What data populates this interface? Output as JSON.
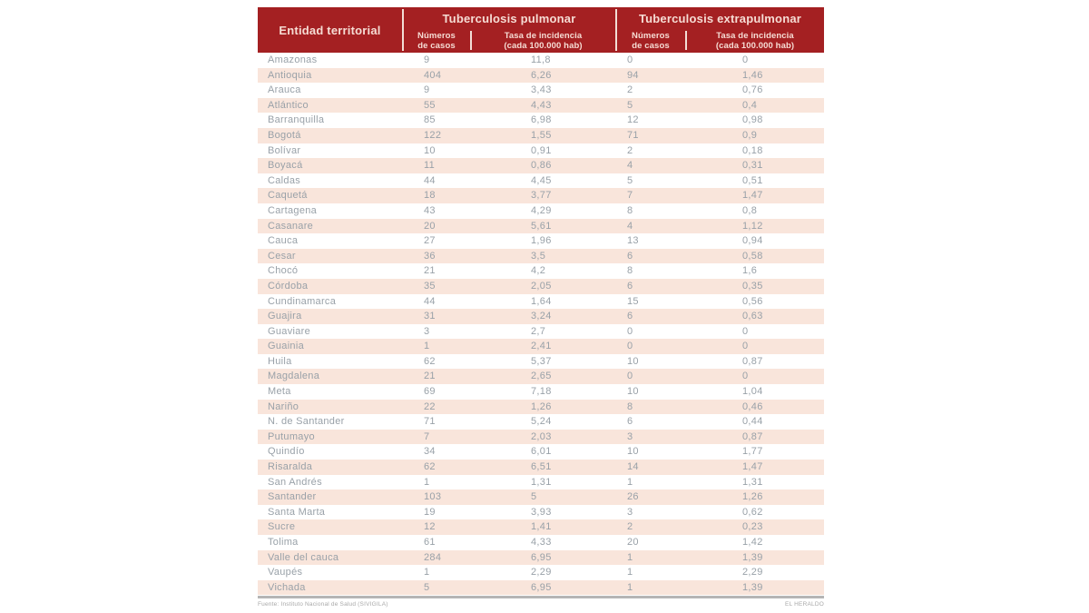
{
  "colors": {
    "header_bg": "#a42022",
    "header_text": "#f6dcd4",
    "row_bg": "#ffffff",
    "row_alt_bg": "#f9e5db",
    "data_text": "#99a1a8",
    "footer_bar": "#b5b5b5",
    "footer_text": "#a8a8a8"
  },
  "table": {
    "entity_header": "Entidad territorial",
    "sections": [
      {
        "title": "Tuberculosis pulmonar",
        "col_casos": {
          "line1": "Números",
          "line2": "de casos"
        },
        "col_tasa": {
          "line1": "Tasa de incidencia",
          "line2": "(cada 100.000 hab)"
        }
      },
      {
        "title": "Tuberculosis extrapulmonar",
        "col_casos": {
          "line1": "Números",
          "line2": "de casos"
        },
        "col_tasa": {
          "line1": "Tasa de incidencia",
          "line2": "(cada 100.000 hab)"
        }
      }
    ],
    "rows": [
      {
        "name": "Amazonas",
        "values": [
          "9",
          "11,8",
          "0",
          "0"
        ]
      },
      {
        "name": "Antioquia",
        "values": [
          "404",
          "6,26",
          "94",
          "1,46"
        ]
      },
      {
        "name": "Arauca",
        "values": [
          "9",
          "3,43",
          "2",
          "0,76"
        ]
      },
      {
        "name": "Atlántico",
        "values": [
          "55",
          "4,43",
          "5",
          "0,4"
        ]
      },
      {
        "name": "Barranquilla",
        "values": [
          "85",
          "6,98",
          "12",
          "0,98"
        ]
      },
      {
        "name": "Bogotá",
        "values": [
          "122",
          "1,55",
          "71",
          "0,9"
        ]
      },
      {
        "name": "Bolívar",
        "values": [
          "10",
          "0,91",
          "2",
          "0,18"
        ]
      },
      {
        "name": "Boyacá",
        "values": [
          "11",
          "0,86",
          "4",
          "0,31"
        ]
      },
      {
        "name": "Caldas",
        "values": [
          "44",
          "4,45",
          "5",
          "0,51"
        ]
      },
      {
        "name": "Caquetá",
        "values": [
          "18",
          "3,77",
          "7",
          "1,47"
        ]
      },
      {
        "name": "Cartagena",
        "values": [
          "43",
          "4,29",
          "8",
          "0,8"
        ]
      },
      {
        "name": "Casanare",
        "values": [
          "20",
          "5,61",
          "4",
          "1,12"
        ]
      },
      {
        "name": "Cauca",
        "values": [
          "27",
          "1,96",
          "13",
          "0,94"
        ]
      },
      {
        "name": "Cesar",
        "values": [
          "36",
          "3,5",
          "6",
          "0,58"
        ]
      },
      {
        "name": "Chocó",
        "values": [
          "21",
          "4,2",
          "8",
          "1,6"
        ]
      },
      {
        "name": "Córdoba",
        "values": [
          "35",
          "2,05",
          "6",
          "0,35"
        ]
      },
      {
        "name": "Cundinamarca",
        "values": [
          "44",
          "1,64",
          "15",
          "0,56"
        ]
      },
      {
        "name": "Guajira",
        "values": [
          "31",
          "3,24",
          "6",
          "0,63"
        ]
      },
      {
        "name": "Guaviare",
        "values": [
          "3",
          "2,7",
          "0",
          "0"
        ]
      },
      {
        "name": "Guainia",
        "values": [
          "1",
          "2,41",
          "0",
          "0"
        ]
      },
      {
        "name": "Huila",
        "values": [
          "62",
          "5,37",
          "10",
          "0,87"
        ]
      },
      {
        "name": "Magdalena",
        "values": [
          "21",
          "2,65",
          "0",
          "0"
        ]
      },
      {
        "name": "Meta",
        "values": [
          "69",
          "7,18",
          "10",
          "1,04"
        ]
      },
      {
        "name": "Nariño",
        "values": [
          "22",
          "1,26",
          "8",
          "0,46"
        ]
      },
      {
        "name": "N. de Santander",
        "values": [
          "71",
          "5,24",
          "6",
          "0,44"
        ]
      },
      {
        "name": "Putumayo",
        "values": [
          "7",
          "2,03",
          "3",
          "0,87"
        ]
      },
      {
        "name": "Quindío",
        "values": [
          "34",
          "6,01",
          "10",
          "1,77"
        ]
      },
      {
        "name": "Risaralda",
        "values": [
          "62",
          "6,51",
          "14",
          "1,47"
        ]
      },
      {
        "name": "San Andrés",
        "values": [
          "1",
          "1,31",
          "1",
          "1,31"
        ]
      },
      {
        "name": "Santander",
        "values": [
          "103",
          "5",
          "26",
          "1,26"
        ]
      },
      {
        "name": "Santa Marta",
        "values": [
          "19",
          "3,93",
          "3",
          "0,62"
        ]
      },
      {
        "name": "Sucre",
        "values": [
          "12",
          "1,41",
          "2",
          "0,23"
        ]
      },
      {
        "name": "Tolima",
        "values": [
          "61",
          "4,33",
          "20",
          "1,42"
        ]
      },
      {
        "name": "Valle del cauca",
        "values": [
          "284",
          "6,95",
          "1",
          "1,39"
        ]
      },
      {
        "name": "Vaupés",
        "values": [
          "1",
          "2,29",
          "1",
          "2,29"
        ]
      },
      {
        "name": "Vichada",
        "values": [
          "5",
          "6,95",
          "1",
          "1,39"
        ]
      }
    ]
  },
  "footer": {
    "source": "Fuente: Instituto Nacional de Salud (SIVIGILA)",
    "credit": "EL HERALDO"
  },
  "chart_data": {
    "type": "table",
    "title": "",
    "columns": [
      "Entidad territorial",
      "Tuberculosis pulmonar - Números de casos",
      "Tuberculosis pulmonar - Tasa de incidencia (cada 100.000 hab)",
      "Tuberculosis extrapulmonar - Números de casos",
      "Tuberculosis extrapulmonar - Tasa de incidencia (cada 100.000 hab)"
    ],
    "rows": [
      [
        "Amazonas",
        9,
        11.8,
        0,
        0
      ],
      [
        "Antioquia",
        404,
        6.26,
        94,
        1.46
      ],
      [
        "Arauca",
        9,
        3.43,
        2,
        0.76
      ],
      [
        "Atlántico",
        55,
        4.43,
        5,
        0.4
      ],
      [
        "Barranquilla",
        85,
        6.98,
        12,
        0.98
      ],
      [
        "Bogotá",
        122,
        1.55,
        71,
        0.9
      ],
      [
        "Bolívar",
        10,
        0.91,
        2,
        0.18
      ],
      [
        "Boyacá",
        11,
        0.86,
        4,
        0.31
      ],
      [
        "Caldas",
        44,
        4.45,
        5,
        0.51
      ],
      [
        "Caquetá",
        18,
        3.77,
        7,
        1.47
      ],
      [
        "Cartagena",
        43,
        4.29,
        8,
        0.8
      ],
      [
        "Casanare",
        20,
        5.61,
        4,
        1.12
      ],
      [
        "Cauca",
        27,
        1.96,
        13,
        0.94
      ],
      [
        "Cesar",
        36,
        3.5,
        6,
        0.58
      ],
      [
        "Chocó",
        21,
        4.2,
        8,
        1.6
      ],
      [
        "Córdoba",
        35,
        2.05,
        6,
        0.35
      ],
      [
        "Cundinamarca",
        44,
        1.64,
        15,
        0.56
      ],
      [
        "Guajira",
        31,
        3.24,
        6,
        0.63
      ],
      [
        "Guaviare",
        3,
        2.7,
        0,
        0
      ],
      [
        "Guainia",
        1,
        2.41,
        0,
        0
      ],
      [
        "Huila",
        62,
        5.37,
        10,
        0.87
      ],
      [
        "Magdalena",
        21,
        2.65,
        0,
        0
      ],
      [
        "Meta",
        69,
        7.18,
        10,
        1.04
      ],
      [
        "Nariño",
        22,
        1.26,
        8,
        0.46
      ],
      [
        "N. de Santander",
        71,
        5.24,
        6,
        0.44
      ],
      [
        "Putumayo",
        7,
        2.03,
        3,
        0.87
      ],
      [
        "Quindío",
        34,
        6.01,
        10,
        1.77
      ],
      [
        "Risaralda",
        62,
        6.51,
        14,
        1.47
      ],
      [
        "San Andrés",
        1,
        1.31,
        1,
        1.31
      ],
      [
        "Santander",
        103,
        5,
        26,
        1.26
      ],
      [
        "Santa Marta",
        19,
        3.93,
        3,
        0.62
      ],
      [
        "Sucre",
        12,
        1.41,
        2,
        0.23
      ],
      [
        "Tolima",
        61,
        4.33,
        20,
        1.42
      ],
      [
        "Valle del cauca",
        284,
        6.95,
        1,
        1.39
      ],
      [
        "Vaupés",
        1,
        2.29,
        1,
        2.29
      ],
      [
        "Vichada",
        5,
        6.95,
        1,
        1.39
      ]
    ]
  }
}
